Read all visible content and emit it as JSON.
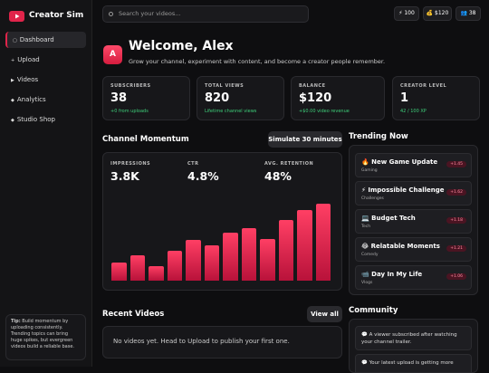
{
  "sidebar": {
    "brand": "Creator Sim",
    "nav": [
      "Dashboard",
      "Upload",
      "Videos",
      "Analytics",
      "Studio Shop"
    ],
    "nav_icons": [
      "▢",
      "+",
      "▶",
      "◆",
      "◆"
    ],
    "tip_title": "Tip:",
    "tip": "Build momentum by uploading consistently. Trending topics can bring huge spikes, but evergreen videos build a reliable base."
  },
  "topbar": {
    "search_placeholder": "Search your videos...",
    "chips": [
      "⚡ 100",
      "💰 $120",
      "👥 38"
    ]
  },
  "welcome": {
    "avatar": "A",
    "title": "Welcome, Alex",
    "subtitle": "Grow your channel, experiment with content, and become a creator people remember."
  },
  "stats": [
    {
      "label": "SUBSCRIBERS",
      "value": "38",
      "note": "+0 from uploads"
    },
    {
      "label": "TOTAL VIEWS",
      "value": "820",
      "note": "Lifetime channel views"
    },
    {
      "label": "BALANCE",
      "value": "$120",
      "note": "+$0.00 video revenue"
    },
    {
      "label": "CREATOR LEVEL",
      "value": "1",
      "note": "42 / 100 XP"
    }
  ],
  "momentum": {
    "title": "Channel Momentum",
    "button": "Simulate 30 minutes",
    "metrics": [
      {
        "label": "IMPRESSIONS",
        "value": "3.8K"
      },
      {
        "label": "CTR",
        "value": "4.8%"
      },
      {
        "label": "AVG. RETENTION",
        "value": "48%"
      }
    ],
    "bars": [
      20,
      28,
      16,
      33,
      45,
      39,
      53,
      58,
      46,
      67,
      78,
      85
    ]
  },
  "recent": {
    "title": "Recent Videos",
    "button": "View all",
    "empty": "No videos yet. Head to Upload to publish your first one."
  },
  "trending": {
    "title": "Trending Now",
    "items": [
      {
        "name": "🔥 New Game Update",
        "category": "Gaming",
        "badge": "+1.45"
      },
      {
        "name": "⚡ Impossible Challenge",
        "category": "Challenges",
        "badge": "+1.62"
      },
      {
        "name": "💻 Budget Tech",
        "category": "Tech",
        "badge": "+1.18"
      },
      {
        "name": "😂 Relatable Moments",
        "category": "Comedy",
        "badge": "+1.21"
      },
      {
        "name": "📹 Day In My Life",
        "category": "Vlogs",
        "badge": "+1.06"
      }
    ]
  },
  "community": {
    "title": "Community",
    "items": [
      "💬 A viewer subscribed after watching your channel trailer.",
      "💬 Your latest upload is getting more"
    ]
  }
}
